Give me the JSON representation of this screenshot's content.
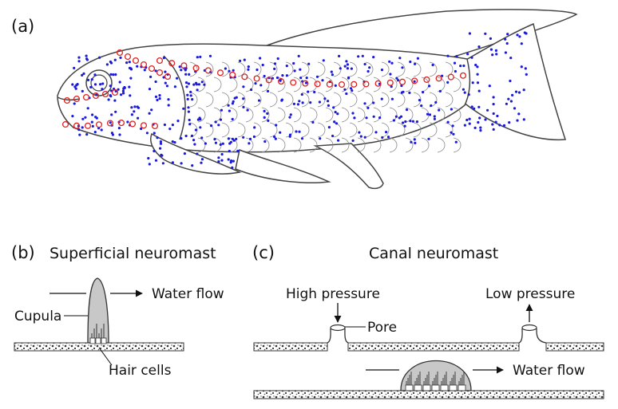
{
  "panels": {
    "a": {
      "label": "(a)"
    },
    "b": {
      "label": "(b)",
      "title": "Superficial neuromast",
      "cupula_label": "Cupula",
      "flow_label": "Water flow",
      "hair_cells_label": "Hair cells"
    },
    "c": {
      "label": "(c)",
      "title": "Canal neuromast",
      "high_pressure_label": "High pressure",
      "low_pressure_label": "Low pressure",
      "pore_label": "Pore",
      "flow_label": "Water flow"
    }
  },
  "legend_colors": {
    "superficial_neuromast_dots": "#1a1adb",
    "canal_neuromast_circles": "#e02020",
    "outline": "#444444",
    "cupula_fill": "#c8c8c8"
  }
}
